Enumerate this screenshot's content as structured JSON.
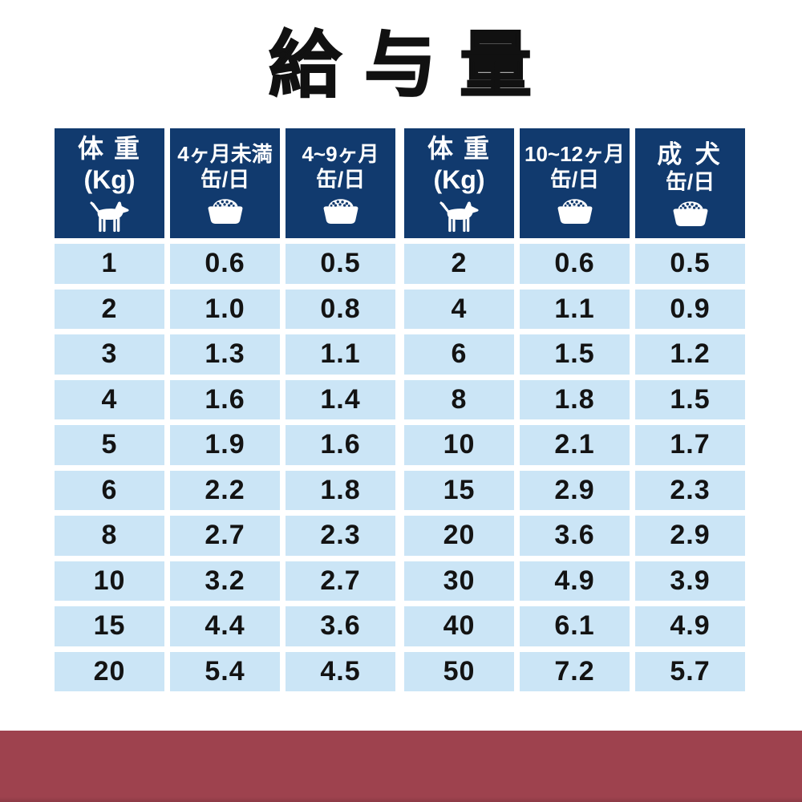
{
  "title": "給 与 量",
  "colors": {
    "page_bg": "#ffffff",
    "title_color": "#111111",
    "header_bg": "#113a6e",
    "header_text": "#ffffff",
    "cell_bg": "#cbe5f6",
    "value_color": "#131313",
    "band": "#9e424e",
    "band_edge": "#8c3a45"
  },
  "table": {
    "columns": [
      {
        "id": "weight-left",
        "kind": "weight",
        "line1": "体 重",
        "line2": "(Kg)",
        "icon": "dog-icon",
        "values": [
          "1",
          "2",
          "3",
          "4",
          "5",
          "6",
          "8",
          "10",
          "15",
          "20"
        ]
      },
      {
        "id": "under-4mo",
        "kind": "amount",
        "line1": "4ヶ月未満",
        "line2": "缶/日",
        "icon": "bowl-icon",
        "values": [
          "0.6",
          "1.0",
          "1.3",
          "1.6",
          "1.9",
          "2.2",
          "2.7",
          "3.2",
          "4.4",
          "5.4"
        ]
      },
      {
        "id": "4-9mo",
        "kind": "amount",
        "line1": "4~9ヶ月",
        "line2": "缶/日",
        "icon": "bowl-icon",
        "values": [
          "0.5",
          "0.8",
          "1.1",
          "1.4",
          "1.6",
          "1.8",
          "2.3",
          "2.7",
          "3.6",
          "4.5"
        ]
      },
      {
        "id": "weight-right",
        "kind": "weight",
        "line1": "体 重",
        "line2": "(Kg)",
        "icon": "dog-icon",
        "values": [
          "2",
          "4",
          "6",
          "8",
          "10",
          "15",
          "20",
          "30",
          "40",
          "50"
        ]
      },
      {
        "id": "10-12mo",
        "kind": "amount",
        "line1": "10~12ヶ月",
        "line2": "缶/日",
        "icon": "bowl-icon",
        "values": [
          "0.6",
          "1.1",
          "1.5",
          "1.8",
          "2.1",
          "2.9",
          "3.6",
          "4.9",
          "6.1",
          "7.2"
        ]
      },
      {
        "id": "adult",
        "kind": "amount",
        "line1": "成 犬",
        "line2": "缶/日",
        "icon": "bowl-icon",
        "values": [
          "0.5",
          "0.9",
          "1.2",
          "1.5",
          "1.7",
          "2.3",
          "2.9",
          "3.9",
          "4.9",
          "5.7"
        ]
      }
    ]
  }
}
